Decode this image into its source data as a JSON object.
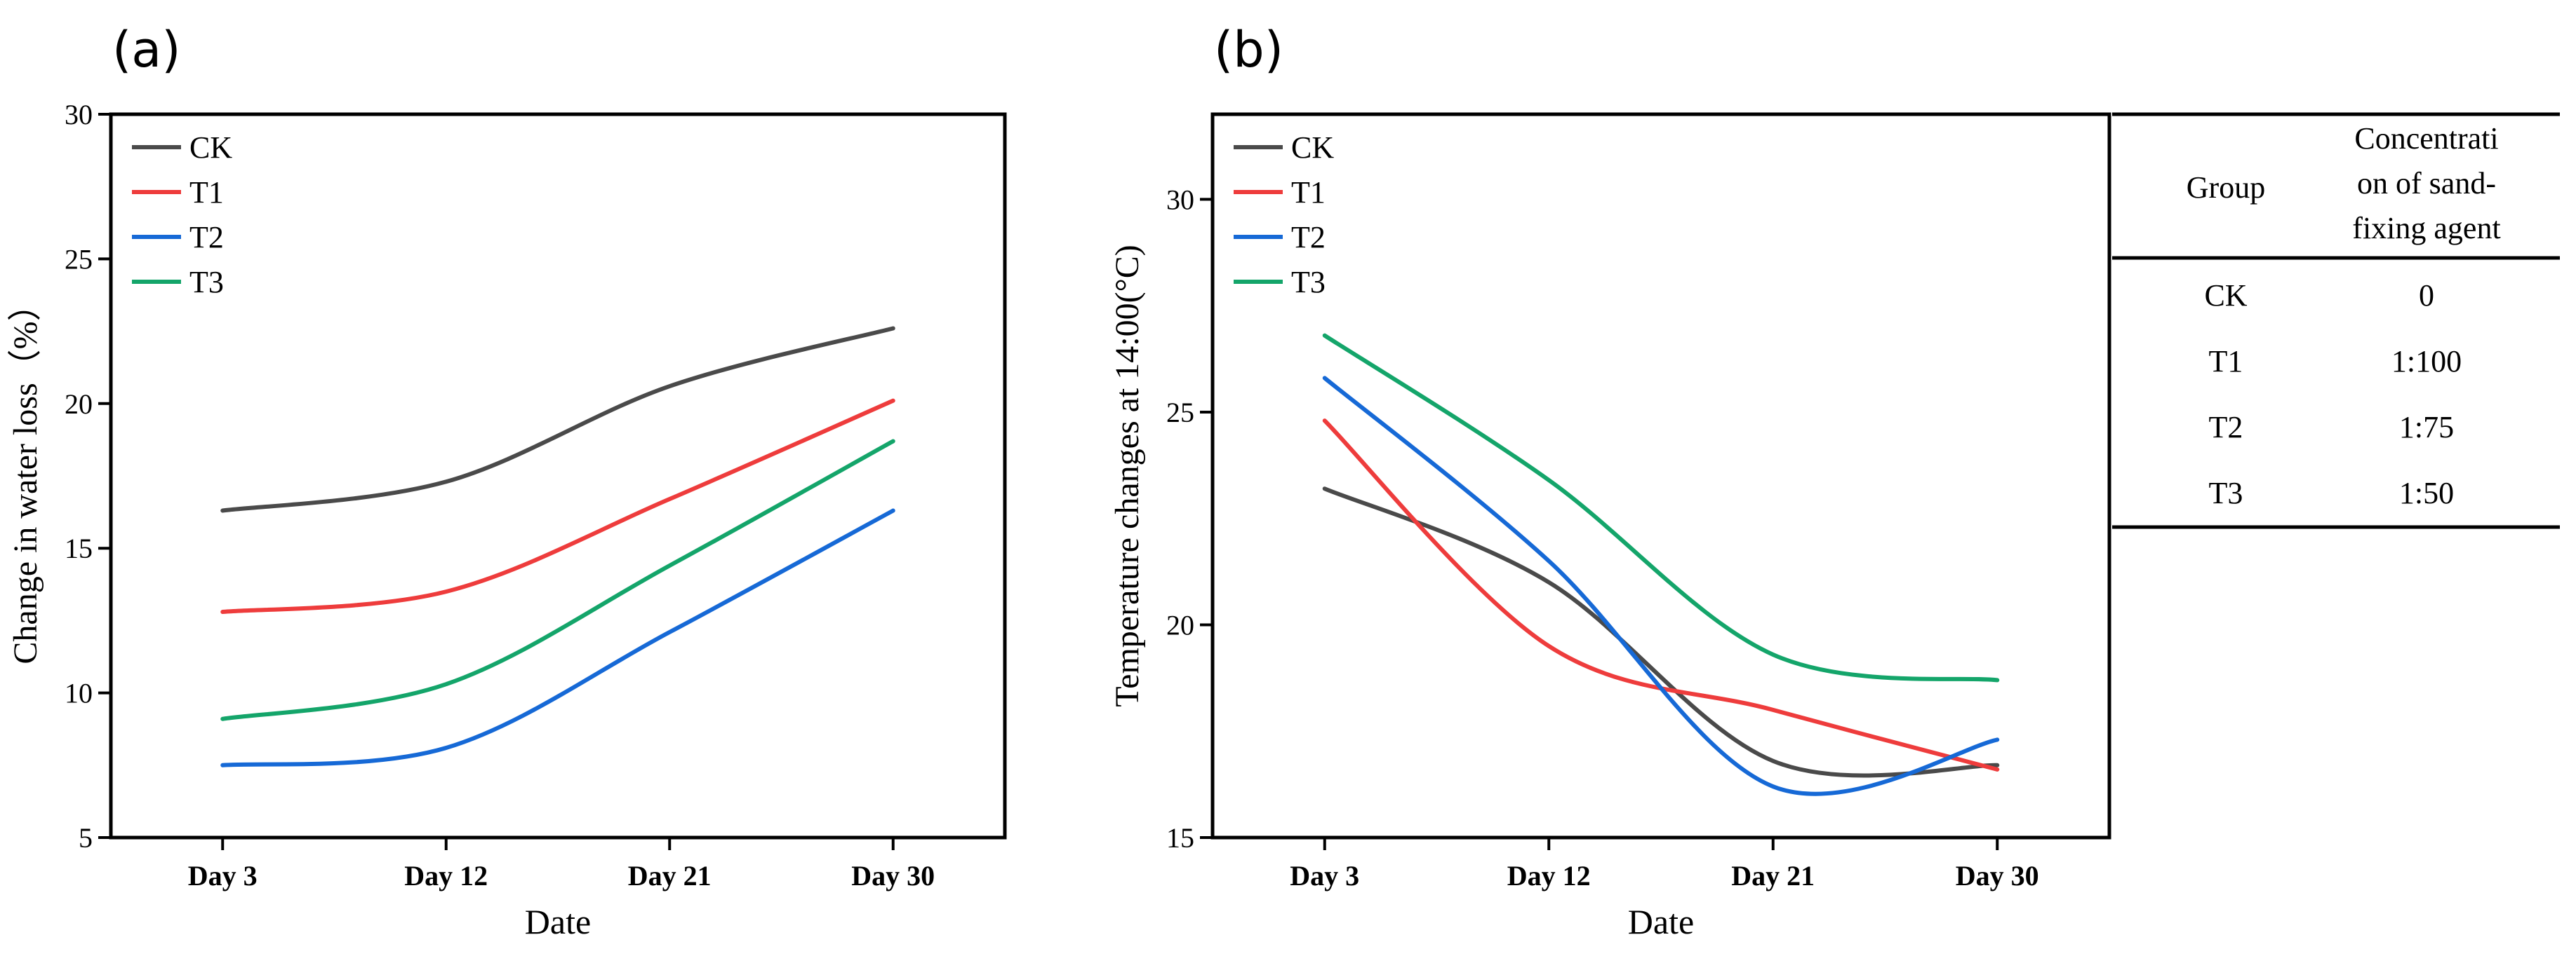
{
  "colors": {
    "CK": "#4a4a4a",
    "T1": "#ee3c3c",
    "T2": "#1669d6",
    "T3": "#14a56a",
    "axis": "#000000"
  },
  "chart_data": [
    {
      "panel_label": "(a)",
      "type": "line",
      "xlabel": "Date",
      "ylabel": "Change in water loss（%）",
      "categories": [
        "Day 3",
        "Day 12",
        "Day 21",
        "Day 30"
      ],
      "x": [
        3,
        12,
        21,
        30
      ],
      "xlim": [
        -1.5,
        34.5
      ],
      "ylim": [
        5,
        30
      ],
      "yticks": [
        5,
        10,
        15,
        20,
        25,
        30
      ],
      "legend_position": "top-left",
      "series": [
        {
          "name": "CK",
          "values": [
            16.3,
            17.3,
            20.6,
            22.6
          ]
        },
        {
          "name": "T1",
          "values": [
            12.8,
            13.5,
            16.7,
            20.1
          ]
        },
        {
          "name": "T2",
          "values": [
            7.5,
            8.1,
            12.1,
            16.3
          ]
        },
        {
          "name": "T3",
          "values": [
            9.1,
            10.3,
            14.4,
            18.7
          ]
        }
      ]
    },
    {
      "panel_label": "(b)",
      "type": "line",
      "xlabel": "Date",
      "ylabel": "Temperature changes at 14:00(°C)",
      "categories": [
        "Day 3",
        "Day 12",
        "Day 21",
        "Day 30"
      ],
      "x": [
        3,
        12,
        21,
        30
      ],
      "xlim": [
        -1.5,
        34.5
      ],
      "ylim": [
        15,
        32
      ],
      "yticks": [
        15,
        20,
        25,
        30
      ],
      "legend_position": "top-left",
      "series": [
        {
          "name": "CK",
          "values": [
            23.2,
            21.0,
            16.8,
            16.7
          ]
        },
        {
          "name": "T1",
          "values": [
            24.8,
            19.5,
            18.0,
            16.6
          ]
        },
        {
          "name": "T2",
          "values": [
            25.8,
            21.5,
            16.2,
            17.3
          ]
        },
        {
          "name": "T3",
          "values": [
            26.8,
            23.4,
            19.3,
            18.7
          ]
        }
      ]
    }
  ],
  "table": {
    "headers": [
      "Group",
      "Concentrati\non of sand-\nfixing agent"
    ],
    "rows": [
      [
        "CK",
        "0"
      ],
      [
        "T1",
        "1:100"
      ],
      [
        "T2",
        "1:75"
      ],
      [
        "T3",
        "1:50"
      ]
    ]
  }
}
